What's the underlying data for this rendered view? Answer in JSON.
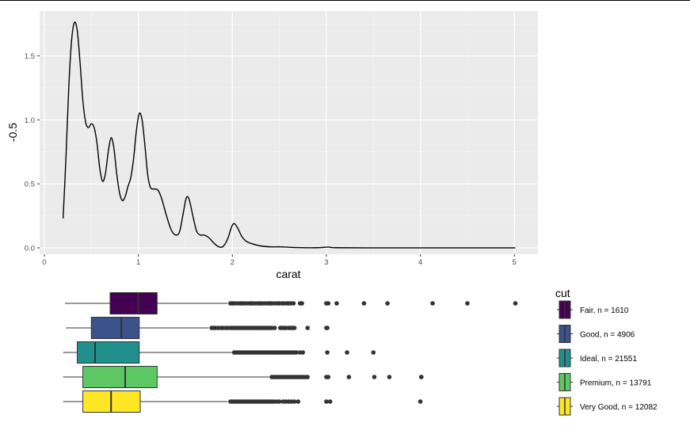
{
  "chart_data": [
    {
      "type": "line",
      "xlabel": "carat",
      "ylabel": "-0.5",
      "xlim": [
        -0.05,
        5.25
      ],
      "ylim": [
        -0.05,
        1.85
      ],
      "x_ticks": [
        "0",
        "1",
        "2",
        "3",
        "4",
        "5"
      ],
      "y_ticks": [
        "0.0",
        "0.5",
        "1.0",
        "1.5"
      ],
      "grid": true,
      "series": [
        {
          "points": [
            [
              0.2,
              0.23
            ],
            [
              0.23,
              0.7
            ],
            [
              0.26,
              1.25
            ],
            [
              0.29,
              1.62
            ],
            [
              0.32,
              1.76
            ],
            [
              0.35,
              1.7
            ],
            [
              0.38,
              1.45
            ],
            [
              0.41,
              1.15
            ],
            [
              0.44,
              0.98
            ],
            [
              0.47,
              0.94
            ],
            [
              0.5,
              0.97
            ],
            [
              0.53,
              0.94
            ],
            [
              0.56,
              0.82
            ],
            [
              0.59,
              0.62
            ],
            [
              0.62,
              0.52
            ],
            [
              0.65,
              0.58
            ],
            [
              0.68,
              0.75
            ],
            [
              0.71,
              0.86
            ],
            [
              0.74,
              0.78
            ],
            [
              0.77,
              0.58
            ],
            [
              0.8,
              0.43
            ],
            [
              0.83,
              0.37
            ],
            [
              0.86,
              0.4
            ],
            [
              0.89,
              0.48
            ],
            [
              0.92,
              0.55
            ],
            [
              0.95,
              0.7
            ],
            [
              0.98,
              0.92
            ],
            [
              1.01,
              1.05
            ],
            [
              1.04,
              1.0
            ],
            [
              1.07,
              0.8
            ],
            [
              1.1,
              0.57
            ],
            [
              1.13,
              0.47
            ],
            [
              1.17,
              0.46
            ],
            [
              1.21,
              0.45
            ],
            [
              1.25,
              0.38
            ],
            [
              1.3,
              0.25
            ],
            [
              1.35,
              0.14
            ],
            [
              1.4,
              0.1
            ],
            [
              1.44,
              0.13
            ],
            [
              1.48,
              0.28
            ],
            [
              1.51,
              0.39
            ],
            [
              1.54,
              0.38
            ],
            [
              1.58,
              0.25
            ],
            [
              1.62,
              0.13
            ],
            [
              1.66,
              0.1
            ],
            [
              1.7,
              0.1
            ],
            [
              1.75,
              0.08
            ],
            [
              1.8,
              0.04
            ],
            [
              1.85,
              0.01
            ],
            [
              1.9,
              0.01
            ],
            [
              1.95,
              0.07
            ],
            [
              1.99,
              0.16
            ],
            [
              2.02,
              0.19
            ],
            [
              2.06,
              0.15
            ],
            [
              2.1,
              0.09
            ],
            [
              2.15,
              0.05
            ],
            [
              2.22,
              0.03
            ],
            [
              2.3,
              0.015
            ],
            [
              2.4,
              0.008
            ],
            [
              2.5,
              0.008
            ],
            [
              2.55,
              0.007
            ],
            [
              2.7,
              0.002
            ],
            [
              2.9,
              0.001
            ],
            [
              3.02,
              0.006
            ],
            [
              3.1,
              0.001
            ],
            [
              3.5,
              0.0
            ],
            [
              4.0,
              0.0
            ],
            [
              4.5,
              0.0
            ],
            [
              5.01,
              0.0
            ]
          ]
        }
      ]
    },
    {
      "type": "boxplot",
      "orientation": "horizontal",
      "legend_title": "cut",
      "legend_placement": "right",
      "xlim": [
        -0.05,
        5.25
      ],
      "series": [
        {
          "name": "Fair, n = 1610",
          "color": "#440154",
          "whisker_low": 0.22,
          "q1": 0.7,
          "median": 1.0,
          "q3": 1.2,
          "whisker_high": 1.95,
          "outliers": [
            1.98,
            2.0,
            2.02,
            2.05,
            2.08,
            2.1,
            2.12,
            2.15,
            2.18,
            2.2,
            2.22,
            2.25,
            2.28,
            2.3,
            2.32,
            2.35,
            2.38,
            2.4,
            2.42,
            2.45,
            2.48,
            2.5,
            2.53,
            2.55,
            2.58,
            2.6,
            2.62,
            2.65,
            2.72,
            2.74,
            3.0,
            3.02,
            3.11,
            3.4,
            3.65,
            4.13,
            4.5,
            5.01
          ]
        },
        {
          "name": "Good, n = 4906",
          "color": "#3b528b",
          "whisker_low": 0.23,
          "q1": 0.5,
          "median": 0.82,
          "q3": 1.01,
          "whisker_high": 1.75,
          "outliers": [
            1.78,
            1.8,
            1.82,
            1.85,
            1.88,
            1.9,
            1.93,
            1.95,
            1.98,
            2.0,
            2.02,
            2.04,
            2.06,
            2.08,
            2.1,
            2.12,
            2.14,
            2.16,
            2.18,
            2.2,
            2.22,
            2.24,
            2.26,
            2.28,
            2.3,
            2.32,
            2.34,
            2.36,
            2.38,
            2.4,
            2.42,
            2.45,
            2.51,
            2.53,
            2.55,
            2.57,
            2.6,
            2.62,
            2.64,
            2.66,
            2.8,
            3.0,
            3.01
          ]
        },
        {
          "name": "Ideal, n = 21551",
          "color": "#21908c",
          "whisker_low": 0.2,
          "q1": 0.35,
          "median": 0.54,
          "q3": 1.01,
          "whisker_high": 2.0,
          "outliers": [
            2.02,
            2.04,
            2.06,
            2.08,
            2.1,
            2.12,
            2.14,
            2.16,
            2.18,
            2.2,
            2.22,
            2.24,
            2.26,
            2.28,
            2.3,
            2.32,
            2.34,
            2.36,
            2.38,
            2.4,
            2.42,
            2.44,
            2.46,
            2.48,
            2.5,
            2.52,
            2.54,
            2.56,
            2.58,
            2.6,
            2.62,
            2.64,
            2.66,
            2.68,
            2.72,
            2.75,
            3.01,
            3.22,
            3.5
          ]
        },
        {
          "name": "Premium, n = 13791",
          "color": "#5dc863",
          "whisker_low": 0.2,
          "q1": 0.41,
          "median": 0.86,
          "q3": 1.2,
          "whisker_high": 2.4,
          "outliers": [
            2.42,
            2.44,
            2.46,
            2.48,
            2.5,
            2.52,
            2.54,
            2.56,
            2.58,
            2.6,
            2.62,
            2.64,
            2.66,
            2.68,
            2.7,
            2.72,
            2.74,
            2.76,
            2.78,
            2.8,
            3.0,
            3.02,
            3.24,
            3.51,
            3.67,
            4.01,
            4.01
          ]
        },
        {
          "name": "Very Good, n = 12082",
          "color": "#fde725",
          "whisker_low": 0.2,
          "q1": 0.41,
          "median": 0.71,
          "q3": 1.02,
          "whisker_high": 1.95,
          "outliers": [
            1.98,
            2.0,
            2.02,
            2.04,
            2.06,
            2.08,
            2.1,
            2.12,
            2.14,
            2.16,
            2.18,
            2.2,
            2.22,
            2.24,
            2.26,
            2.28,
            2.3,
            2.32,
            2.34,
            2.36,
            2.38,
            2.4,
            2.42,
            2.44,
            2.47,
            2.5,
            2.54,
            2.57,
            2.6,
            2.63,
            2.66,
            2.7,
            3.0,
            3.04,
            4.0
          ]
        }
      ]
    }
  ]
}
